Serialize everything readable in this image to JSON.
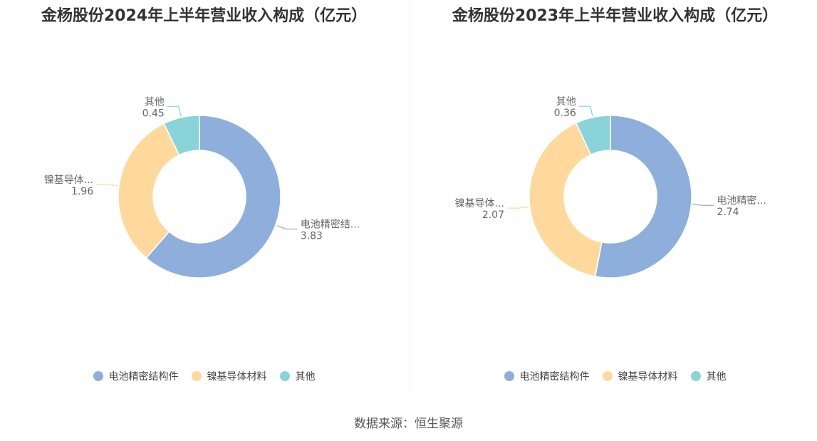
{
  "colors": [
    "#8eaedc",
    "#fed99b",
    "#88d4d9"
  ],
  "source": "数据来源：恒生聚源",
  "chart_data": [
    {
      "type": "pie",
      "title": "金杨股份2024年上半年营业收入构成（亿元）",
      "categories": [
        "电池精密结构件",
        "镍基导体材料",
        "其他"
      ],
      "slice_labels": [
        "电池精密结...",
        "镍基导体...",
        "其他"
      ],
      "values": [
        3.83,
        1.96,
        0.45
      ],
      "value_labels": [
        "3.83",
        "1.96",
        "0.45"
      ],
      "legend": "bottom"
    },
    {
      "type": "pie",
      "title": "金杨股份2023年上半年营业收入构成（亿元）",
      "categories": [
        "电池精密结构件",
        "镍基导体材料",
        "其他"
      ],
      "slice_labels": [
        "电池精密...",
        "镍基导体...",
        "其他"
      ],
      "values": [
        2.74,
        2.07,
        0.36
      ],
      "value_labels": [
        "2.74",
        "2.07",
        "0.36"
      ],
      "legend": "bottom"
    }
  ]
}
